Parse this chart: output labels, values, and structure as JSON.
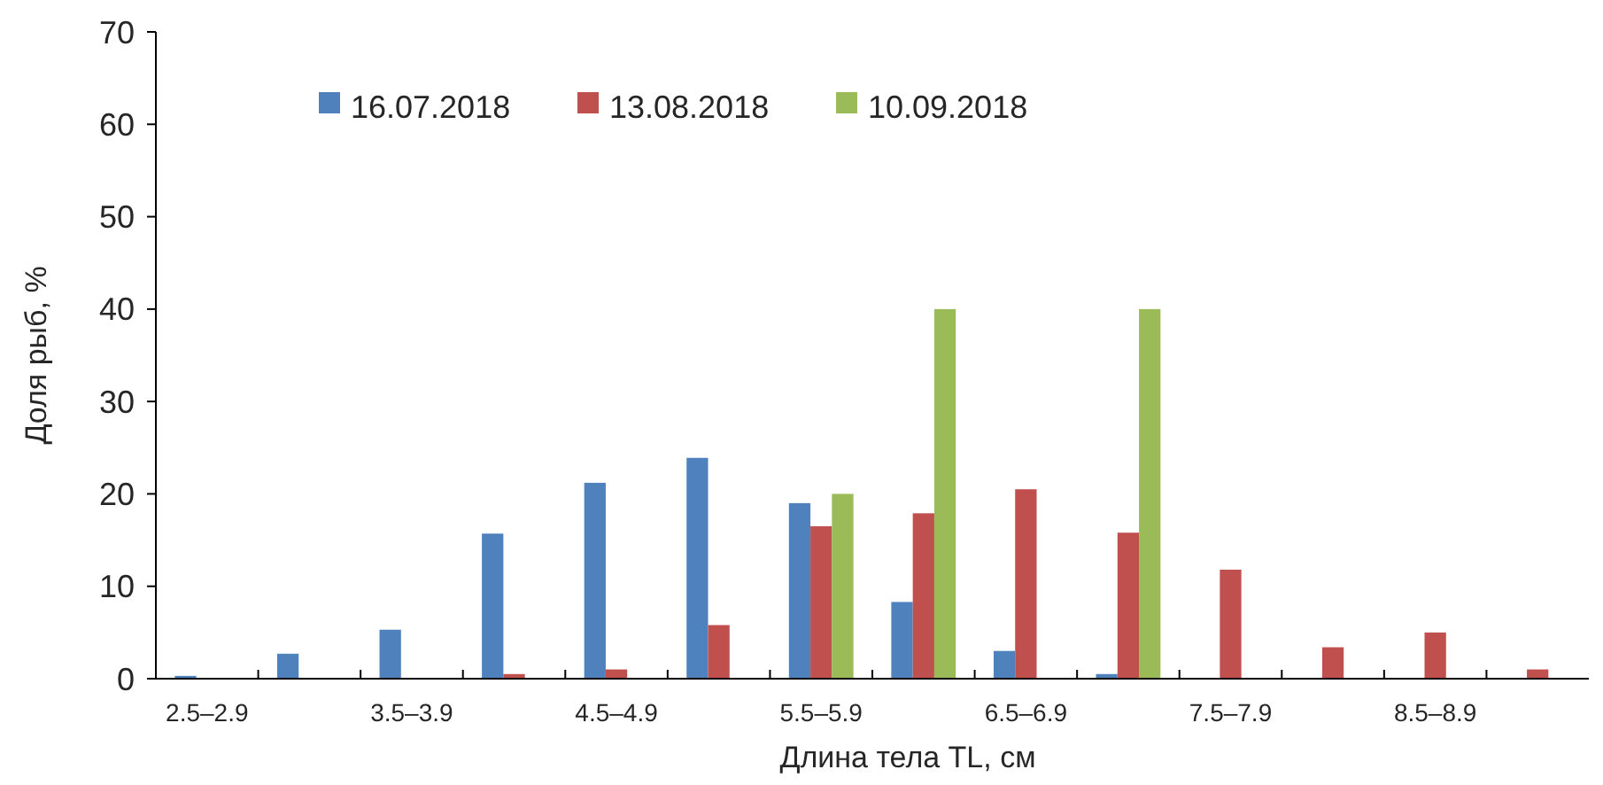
{
  "chart_data": {
    "type": "bar",
    "xlabel": "Длина тела TL, см",
    "ylabel": "Доля рыб, %",
    "categories": [
      "2.5–2.9",
      null,
      "3.5–3.9",
      null,
      "4.5–4.9",
      null,
      "5.5–5.9",
      null,
      "6.5–6.9",
      null,
      "7.5–7.9",
      null,
      "8.5–8.9",
      null
    ],
    "series": [
      {
        "name": "16.07.2018",
        "color": "#4f81bd",
        "values": [
          0.3,
          2.7,
          5.3,
          15.7,
          21.2,
          23.9,
          19,
          8.3,
          3,
          0.5,
          null,
          null,
          null,
          null
        ]
      },
      {
        "name": "13.08.2018",
        "color": "#c0504d",
        "values": [
          null,
          null,
          null,
          0.5,
          1,
          5.8,
          16.5,
          17.9,
          20.5,
          15.8,
          11.8,
          3.4,
          5,
          1
        ]
      },
      {
        "name": "10.09.2018",
        "color": "#9bbb59",
        "values": [
          null,
          null,
          null,
          null,
          null,
          null,
          20,
          40,
          null,
          40,
          null,
          null,
          null,
          null
        ]
      }
    ],
    "ylim": [
      0,
      70
    ],
    "yticks": [
      0,
      10,
      20,
      30,
      40,
      50,
      60,
      70
    ],
    "grid": false,
    "legend": "top"
  }
}
